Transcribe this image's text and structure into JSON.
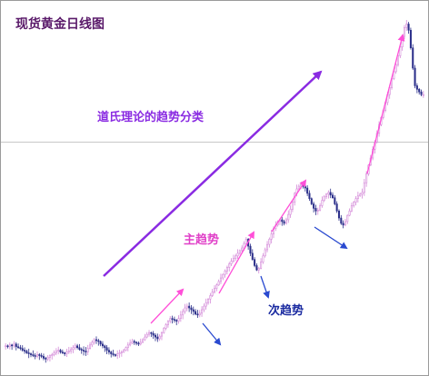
{
  "chart_data": {
    "type": "candlestick",
    "title": "现货黄金日线图",
    "xlabel": "",
    "ylabel": "",
    "grid": false,
    "annotations": {
      "theory": "道氏理论的趋势分类",
      "primary": "主趋势",
      "secondary": "次趋势"
    },
    "colors": {
      "up": "#d48ad8",
      "down": "#2b2f8a",
      "theory_text": "#8a2be2",
      "primary_text": "#e040c8",
      "secondary_text": "#1a2aa0",
      "big_arrow": "#8a2be2",
      "up_arrows": "#ff4fd8",
      "down_arrows": "#2a4ad0",
      "ref_line": "#c8c8c8",
      "title": "#5a1a6a"
    },
    "ylim": [
      0,
      410
    ],
    "reference_level": 258,
    "closes": [
      27,
      26,
      28,
      27,
      29,
      26,
      25,
      24,
      22,
      21,
      19,
      18,
      17,
      16,
      15,
      17,
      16,
      15,
      13,
      12,
      14,
      16,
      17,
      19,
      21,
      22,
      20,
      19,
      18,
      20,
      21,
      23,
      25,
      27,
      25,
      23,
      22,
      21,
      20,
      24,
      28,
      31,
      34,
      33,
      32,
      29,
      27,
      25,
      22,
      20,
      18,
      17,
      16,
      18,
      19,
      20,
      22,
      25,
      28,
      30,
      32,
      31,
      30,
      29,
      31,
      34,
      37,
      40,
      42,
      41,
      39,
      37,
      35,
      38,
      42,
      47,
      51,
      55,
      58,
      57,
      56,
      55,
      58,
      62,
      66,
      70,
      72,
      70,
      68,
      66,
      63,
      62,
      64,
      68,
      72,
      76,
      80,
      84,
      88,
      92,
      96,
      100,
      104,
      108,
      112,
      116,
      120,
      123,
      126,
      129,
      132,
      135,
      138,
      143,
      148,
      140,
      132,
      125,
      118,
      113,
      115,
      122,
      129,
      136,
      142,
      148,
      154,
      160,
      164,
      168,
      170,
      168,
      166,
      170,
      176,
      182,
      190,
      200,
      205,
      208,
      210,
      208,
      206,
      200,
      194,
      188,
      183,
      180,
      181,
      186,
      192,
      196,
      199,
      201,
      198,
      195,
      188,
      180,
      172,
      166,
      164,
      168,
      175,
      180,
      186,
      190,
      194,
      197,
      199,
      201,
      212,
      222,
      232,
      240,
      250,
      258,
      268,
      278,
      286,
      294,
      303,
      312,
      320,
      330,
      338,
      346,
      356,
      366,
      378,
      388,
      392,
      385,
      365,
      342,
      322,
      318,
      315,
      312,
      312
    ]
  }
}
